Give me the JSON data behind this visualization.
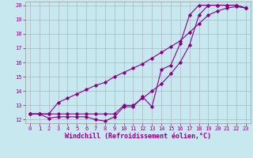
{
  "xlabel": "Windchill (Refroidissement éolien,°C)",
  "bg_color": "#c8e8f0",
  "line_color": "#880088",
  "xlim": [
    -0.5,
    23.5
  ],
  "ylim": [
    11.75,
    20.25
  ],
  "xticks": [
    0,
    1,
    2,
    3,
    4,
    5,
    6,
    7,
    8,
    9,
    10,
    11,
    12,
    13,
    14,
    15,
    16,
    17,
    18,
    19,
    20,
    21,
    22,
    23
  ],
  "yticks": [
    12,
    13,
    14,
    15,
    16,
    17,
    18,
    19,
    20
  ],
  "series1_x": [
    0,
    1,
    2,
    3,
    4,
    5,
    6,
    7,
    8,
    9,
    10,
    11,
    12,
    13,
    14,
    15,
    16,
    17,
    18,
    19,
    20,
    21,
    22,
    23
  ],
  "series1_y": [
    12.4,
    12.4,
    12.1,
    12.2,
    12.2,
    12.2,
    12.2,
    12.0,
    11.9,
    12.2,
    12.9,
    12.9,
    13.6,
    12.9,
    15.5,
    15.8,
    17.3,
    19.3,
    20.0,
    20.0,
    20.0,
    20.0,
    20.0,
    19.8
  ],
  "series2_x": [
    0,
    1,
    2,
    3,
    4,
    5,
    6,
    7,
    8,
    9,
    10,
    11,
    12,
    13,
    14,
    15,
    16,
    17,
    18,
    19,
    20,
    21,
    22,
    23
  ],
  "series2_y": [
    12.4,
    12.4,
    12.4,
    13.2,
    13.5,
    13.8,
    14.1,
    14.4,
    14.6,
    15.0,
    15.3,
    15.6,
    15.9,
    16.3,
    16.7,
    17.1,
    17.5,
    18.1,
    18.7,
    19.3,
    19.6,
    19.8,
    19.9,
    19.8
  ],
  "series3_x": [
    0,
    1,
    2,
    3,
    4,
    5,
    6,
    7,
    8,
    9,
    10,
    11,
    12,
    13,
    14,
    15,
    16,
    17,
    18,
    19,
    20,
    21,
    22,
    23
  ],
  "series3_y": [
    12.4,
    12.4,
    12.4,
    12.4,
    12.4,
    12.4,
    12.4,
    12.4,
    12.4,
    12.4,
    13.0,
    13.0,
    13.5,
    14.0,
    14.5,
    15.2,
    16.0,
    17.2,
    19.3,
    20.0,
    20.0,
    20.0,
    20.0,
    19.8
  ],
  "tick_color": "#880088",
  "grid_color": "#b0b0c0",
  "tick_fontsize": 5.0,
  "xlabel_fontsize": 6.0
}
